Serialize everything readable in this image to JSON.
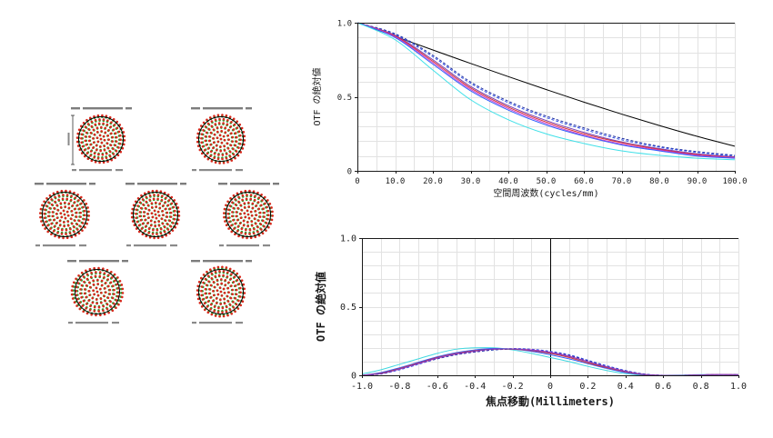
{
  "spot_diagrams": {
    "wavelength_colors": [
      "#2f9a2f",
      "#d8281c",
      "#d9b51a"
    ],
    "airy_disk_color": "#000000"
  },
  "chart_data": [
    {
      "type": "line",
      "xlabel": "空間周波数(cycles/mm)",
      "ylabel": "OTF の絶対値",
      "xlim": [
        0,
        100
      ],
      "ylim": [
        0,
        1
      ],
      "xtick_values": [
        0,
        10,
        20,
        30,
        40,
        50,
        60,
        70,
        80,
        90,
        100
      ],
      "xtick_labels": [
        "0",
        "10.0",
        "20.0",
        "30.0",
        "40.0",
        "50.0",
        "60.0",
        "70.0",
        "80.0",
        "90.0",
        "100.0"
      ],
      "ytick_values": [
        0,
        0.5,
        1
      ],
      "ytick_labels": [
        "0",
        "0.5",
        "1.0"
      ],
      "grid": true,
      "x": [
        0,
        10,
        20,
        30,
        40,
        50,
        60,
        70,
        80,
        90,
        100
      ],
      "series": [
        {
          "color": "#000000",
          "dashed": false,
          "values": [
            1.0,
            0.908,
            0.816,
            0.725,
            0.636,
            0.549,
            0.464,
            0.383,
            0.306,
            0.233,
            0.166
          ]
        },
        {
          "color": "#2030a0",
          "dashed": true,
          "values": [
            1.0,
            0.925,
            0.78,
            0.6,
            0.47,
            0.37,
            0.29,
            0.22,
            0.165,
            0.13,
            0.105
          ]
        },
        {
          "color": "#3050e8",
          "dashed": true,
          "values": [
            1.0,
            0.92,
            0.77,
            0.59,
            0.46,
            0.36,
            0.28,
            0.21,
            0.16,
            0.125,
            0.1
          ]
        },
        {
          "color": "#7a3fb0",
          "dashed": false,
          "values": [
            1.0,
            0.915,
            0.75,
            0.57,
            0.44,
            0.34,
            0.26,
            0.195,
            0.15,
            0.115,
            0.095
          ]
        },
        {
          "color": "#d83030",
          "dashed": false,
          "values": [
            1.0,
            0.91,
            0.74,
            0.56,
            0.43,
            0.33,
            0.25,
            0.19,
            0.145,
            0.11,
            0.09
          ]
        },
        {
          "color": "#d040c8",
          "dashed": false,
          "values": [
            1.0,
            0.905,
            0.73,
            0.55,
            0.42,
            0.32,
            0.24,
            0.18,
            0.14,
            0.105,
            0.088
          ]
        },
        {
          "color": "#2f5fff",
          "dashed": false,
          "values": [
            1.0,
            0.9,
            0.72,
            0.54,
            0.41,
            0.31,
            0.235,
            0.175,
            0.135,
            0.1,
            0.085
          ]
        },
        {
          "color": "#40e0e8",
          "dashed": false,
          "values": [
            1.0,
            0.885,
            0.68,
            0.48,
            0.345,
            0.25,
            0.185,
            0.135,
            0.105,
            0.085,
            0.075
          ]
        }
      ]
    },
    {
      "type": "line",
      "xlabel": "焦点移動(Millimeters)",
      "ylabel": "OTF の絶対値",
      "xlim": [
        -1,
        1
      ],
      "ylim": [
        0,
        1
      ],
      "xtick_values": [
        -1,
        -0.8,
        -0.6,
        -0.4,
        -0.2,
        0,
        0.2,
        0.4,
        0.6,
        0.8,
        1
      ],
      "xtick_labels": [
        "-1.0",
        "-0.8",
        "-0.6",
        "-0.4",
        "-0.2",
        "0",
        "0.2",
        "0.4",
        "0.6",
        "0.8",
        "1.0"
      ],
      "ytick_values": [
        0,
        0.5,
        1
      ],
      "ytick_labels": [
        "0",
        "0.5",
        "1.0"
      ],
      "grid": true,
      "marker_x": 0,
      "x": [
        -1.0,
        -0.9,
        -0.8,
        -0.7,
        -0.6,
        -0.5,
        -0.4,
        -0.3,
        -0.2,
        -0.1,
        0.0,
        0.1,
        0.2,
        0.3,
        0.4,
        0.5,
        0.6,
        0.7,
        0.8,
        0.9,
        1.0
      ],
      "series": [
        {
          "color": "#40d8e0",
          "dashed": false,
          "values": [
            0.01,
            0.04,
            0.08,
            0.12,
            0.16,
            0.19,
            0.2,
            0.2,
            0.185,
            0.16,
            0.13,
            0.1,
            0.065,
            0.035,
            0.012,
            0.0,
            0.0,
            0.002,
            0.005,
            0.006,
            0.005
          ]
        },
        {
          "color": "#2f5fff",
          "dashed": false,
          "values": [
            0.0,
            0.02,
            0.055,
            0.095,
            0.135,
            0.165,
            0.185,
            0.195,
            0.19,
            0.175,
            0.15,
            0.12,
            0.085,
            0.05,
            0.02,
            0.003,
            0.0,
            0.0,
            0.003,
            0.005,
            0.004
          ]
        },
        {
          "color": "#3050e8",
          "dashed": true,
          "values": [
            0.0,
            0.01,
            0.04,
            0.08,
            0.12,
            0.15,
            0.17,
            0.185,
            0.195,
            0.19,
            0.175,
            0.15,
            0.11,
            0.07,
            0.035,
            0.01,
            0.0,
            0.0,
            0.003,
            0.006,
            0.005
          ]
        },
        {
          "color": "#2030a0",
          "dashed": true,
          "values": [
            0.0,
            0.01,
            0.045,
            0.085,
            0.12,
            0.15,
            0.17,
            0.185,
            0.19,
            0.185,
            0.17,
            0.145,
            0.105,
            0.065,
            0.032,
            0.008,
            0.0,
            0.0,
            0.003,
            0.006,
            0.005
          ]
        },
        {
          "color": "#d83030",
          "dashed": false,
          "values": [
            0.0,
            0.015,
            0.05,
            0.09,
            0.13,
            0.16,
            0.18,
            0.19,
            0.19,
            0.18,
            0.16,
            0.13,
            0.09,
            0.055,
            0.025,
            0.005,
            0.0,
            0.0,
            0.003,
            0.006,
            0.004
          ]
        },
        {
          "color": "#d040c8",
          "dashed": false,
          "values": [
            0.0,
            0.012,
            0.045,
            0.085,
            0.125,
            0.155,
            0.175,
            0.19,
            0.192,
            0.185,
            0.168,
            0.14,
            0.1,
            0.062,
            0.03,
            0.007,
            0.0,
            0.0,
            0.003,
            0.006,
            0.004
          ]
        },
        {
          "color": "#7a3fb0",
          "dashed": false,
          "values": [
            0.0,
            0.012,
            0.047,
            0.087,
            0.127,
            0.157,
            0.177,
            0.19,
            0.191,
            0.182,
            0.165,
            0.137,
            0.098,
            0.06,
            0.028,
            0.006,
            0.0,
            0.0,
            0.003,
            0.006,
            0.004
          ]
        }
      ]
    }
  ]
}
